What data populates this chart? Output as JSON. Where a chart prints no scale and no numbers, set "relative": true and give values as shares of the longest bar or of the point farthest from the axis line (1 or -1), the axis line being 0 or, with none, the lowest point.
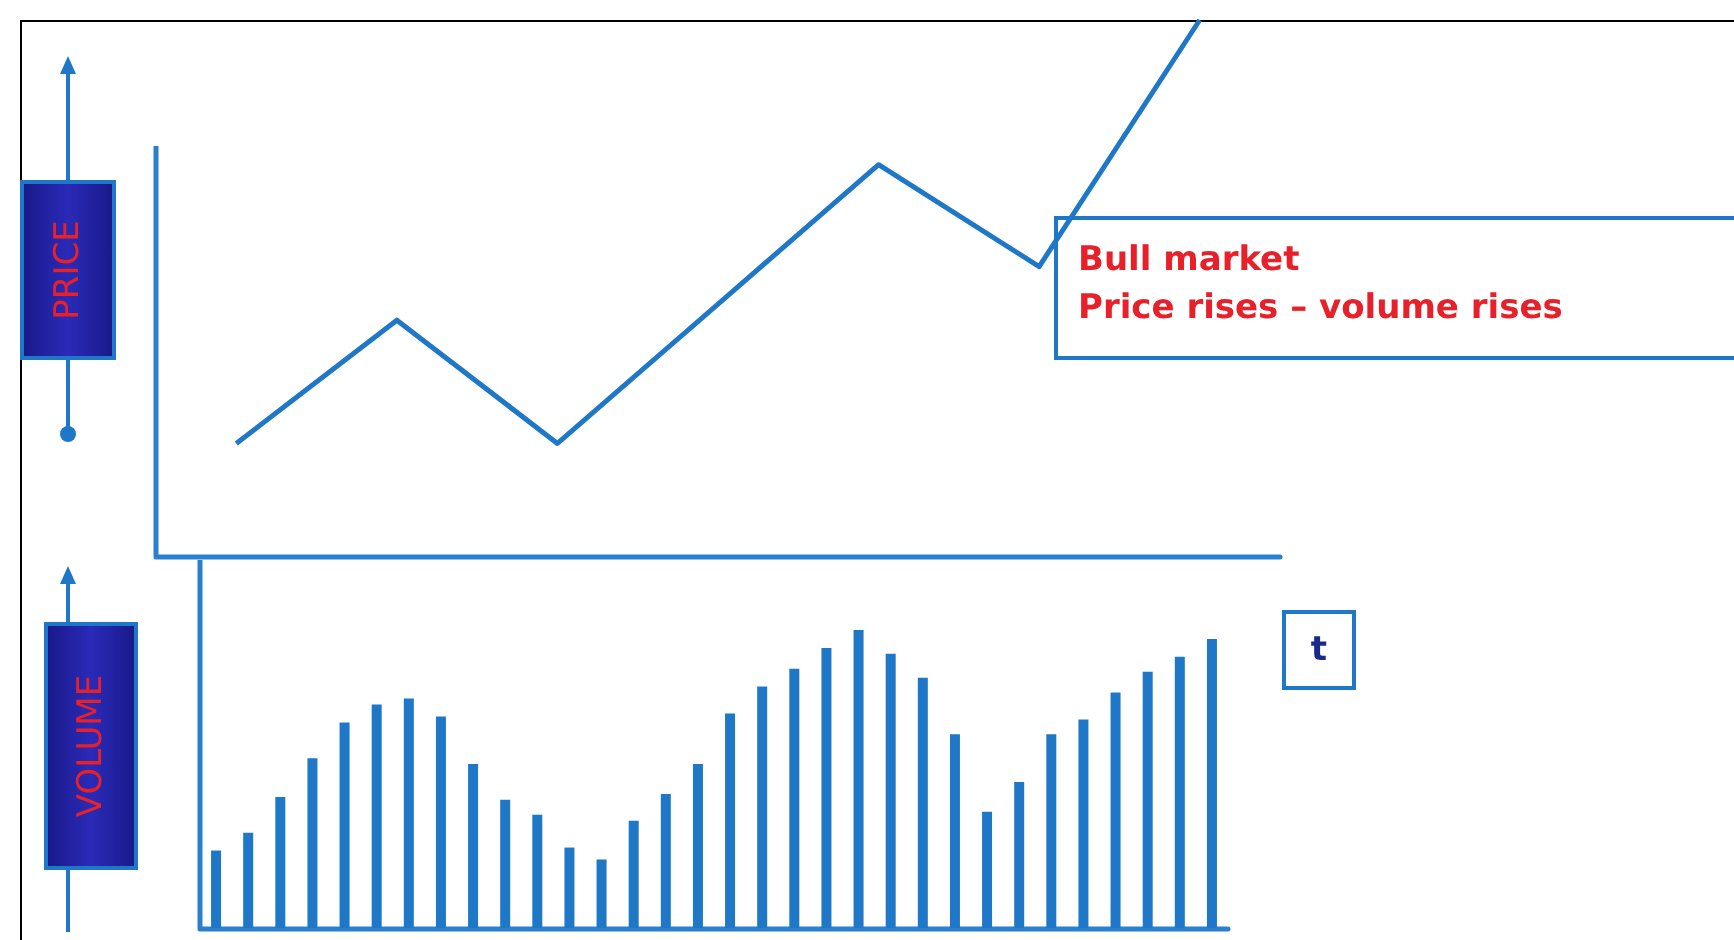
{
  "chart_data": [
    {
      "type": "line",
      "relative": true,
      "categories": [
        null,
        null,
        null,
        null,
        null,
        null,
        null
      ],
      "values": [
        0.21,
        0.44,
        0.21,
        0.47,
        0.73,
        0.54,
        1
      ],
      "color": "#1f77c8",
      "ylabel": "PRICE",
      "annotations": [
        "Bull market\nPrice rises – volume rises"
      ],
      "tick_labels": false,
      "marker": "none"
    },
    {
      "type": "bar",
      "relative": true,
      "categories": [
        null,
        null,
        null,
        null,
        null,
        null,
        null,
        null,
        null,
        null,
        null,
        null,
        null,
        null,
        null,
        null,
        null,
        null,
        null,
        null,
        null,
        null,
        null,
        null,
        null,
        null,
        null,
        null,
        null,
        null,
        null,
        null
      ],
      "values": [
        0.26,
        0.32,
        0.44,
        0.57,
        0.69,
        0.75,
        0.77,
        0.71,
        0.55,
        0.43,
        0.38,
        0.27,
        0.23,
        0.36,
        0.45,
        0.55,
        0.72,
        0.81,
        0.87,
        0.94,
        1,
        0.92,
        0.84,
        0.65,
        0.39,
        0.49,
        0.65,
        0.7,
        0.79,
        0.86,
        0.91,
        0.97
      ],
      "color": "#1f77c8",
      "ylabel": "VOLUME",
      "xlabel": "t",
      "tick_labels": false
    }
  ]
}
